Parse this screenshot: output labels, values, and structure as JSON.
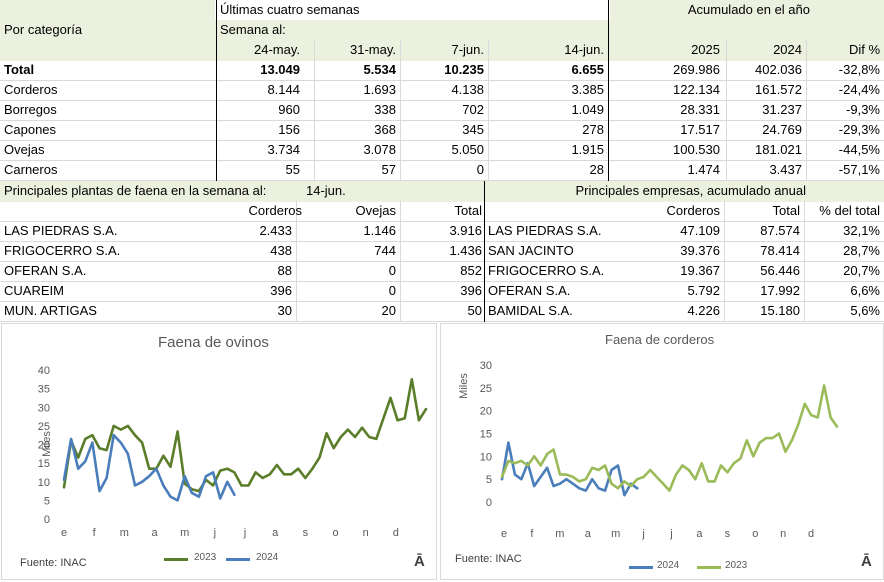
{
  "top": {
    "group_recent": "Últimas cuatro semanas",
    "group_ytd": "Acumulado en el año",
    "row_header": "Por categoría",
    "week_label": "Semana al:",
    "columns": [
      "24-may.",
      "31-may.",
      "7-jun.",
      "14-jun.",
      "2025",
      "2024",
      "Dif %"
    ],
    "rows": [
      {
        "label": "Total",
        "bold": true,
        "values": [
          "13.049",
          "5.534",
          "10.235",
          "6.655",
          "269.986",
          "402.036",
          "-32,8%"
        ]
      },
      {
        "label": "Corderos",
        "values": [
          "8.144",
          "1.693",
          "4.138",
          "3.385",
          "122.134",
          "161.572",
          "-24,4%"
        ]
      },
      {
        "label": "Borregos",
        "values": [
          "960",
          "338",
          "702",
          "1.049",
          "28.331",
          "31.237",
          "-9,3%"
        ]
      },
      {
        "label": "Capones",
        "values": [
          "156",
          "368",
          "345",
          "278",
          "17.517",
          "24.769",
          "-29,3%"
        ]
      },
      {
        "label": "Ovejas",
        "values": [
          "3.734",
          "3.078",
          "5.050",
          "1.915",
          "100.530",
          "181.021",
          "-44,5%"
        ]
      },
      {
        "label": "Carneros",
        "values": [
          "55",
          "57",
          "0",
          "28",
          "1.474",
          "3.437",
          "-57,1%"
        ]
      }
    ]
  },
  "plants": {
    "title": "Principales plantas de faena en la semana al:",
    "date": "14-jun.",
    "columns": [
      "Corderos",
      "Ovejas",
      "Total"
    ],
    "rows": [
      {
        "name": "LAS PIEDRAS S.A.",
        "values": [
          "2.433",
          "1.146",
          "3.916"
        ]
      },
      {
        "name": "FRIGOCERRO S.A.",
        "values": [
          "438",
          "744",
          "1.436"
        ]
      },
      {
        "name": "OFERAN S.A.",
        "values": [
          "88",
          "0",
          "852"
        ]
      },
      {
        "name": "CUAREIM",
        "values": [
          "396",
          "0",
          "396"
        ]
      },
      {
        "name": "MUN. ARTIGAS",
        "values": [
          "30",
          "20",
          "50"
        ]
      }
    ]
  },
  "companies": {
    "title": "Principales empresas, acumulado anual",
    "columns": [
      "Corderos",
      "Total",
      "% del total"
    ],
    "rows": [
      {
        "name": "LAS PIEDRAS S.A.",
        "values": [
          "47.109",
          "87.574",
          "32,1%"
        ]
      },
      {
        "name": "SAN JACINTO",
        "values": [
          "39.376",
          "78.414",
          "28,7%"
        ]
      },
      {
        "name": "FRIGOCERRO S.A.",
        "values": [
          "19.367",
          "56.446",
          "20,7%"
        ]
      },
      {
        "name": "OFERAN S.A.",
        "values": [
          "5.792",
          "17.992",
          "6,6%"
        ]
      },
      {
        "name": "BAMIDAL S.A.",
        "values": [
          "4.226",
          "15.180",
          "5,6%"
        ]
      }
    ]
  },
  "chart_data": [
    {
      "type": "line",
      "title": "Faena de ovinos",
      "ylabel": "Miles",
      "ylim": [
        0,
        40
      ],
      "yticks": [
        0,
        5,
        10,
        15,
        20,
        25,
        30,
        35,
        40
      ],
      "xticks": [
        "e",
        "f",
        "m",
        "a",
        "m",
        "j",
        "j",
        "a",
        "s",
        "o",
        "n",
        "d"
      ],
      "grid": false,
      "legend": "bottom",
      "source": "Fuente:  INAC",
      "logo": "Ā",
      "series": [
        {
          "name": "2023",
          "color": "#5a7d2a",
          "values": [
            8.5,
            21,
            16.5,
            21.5,
            22.5,
            19,
            18.5,
            25,
            24,
            25,
            22.5,
            20.5,
            13.5,
            13.5,
            17,
            14,
            23.5,
            9.5,
            8,
            7.5,
            10.5,
            9,
            13,
            13.5,
            12.5,
            9,
            9,
            12.5,
            11,
            12,
            14.5,
            12,
            12,
            13.5,
            11,
            13.5,
            16.5,
            23,
            19,
            22,
            24,
            22,
            24.5,
            22,
            21.5,
            27,
            32.5,
            26.5,
            27,
            37.5,
            26.5,
            29.5
          ]
        },
        {
          "name": "2024",
          "color": "#4a7ebb",
          "values": [
            10.5,
            21.5,
            13.5,
            15.5,
            20.5,
            7.5,
            11,
            22.5,
            20.5,
            17.5,
            9,
            10,
            11.5,
            13.5,
            9,
            6,
            5,
            11.5,
            7,
            6,
            11.5,
            12.5,
            5.5,
            10,
            6.5
          ]
        }
      ]
    },
    {
      "type": "line",
      "title": "Faena de corderos",
      "ylabel": "Miles",
      "ylim": [
        0,
        30
      ],
      "yticks": [
        0,
        5,
        10,
        15,
        20,
        25,
        30
      ],
      "xticks": [
        "e",
        "f",
        "m",
        "a",
        "m",
        "j",
        "j",
        "a",
        "s",
        "o",
        "n",
        "d"
      ],
      "grid": false,
      "legend": "bottom",
      "source": "Fuente:  INAC",
      "logo": "Ā",
      "series": [
        {
          "name": "2024",
          "color": "#4a7ebb",
          "values": [
            5,
            13,
            6,
            5,
            8.5,
            3.5,
            5.5,
            7.5,
            3.5,
            4,
            5,
            4,
            3,
            2.5,
            5,
            3,
            2.5,
            7,
            8,
            1.5,
            4,
            3
          ]
        },
        {
          "name": "2023",
          "color": "#9bbb59",
          "values": [
            5.5,
            9,
            8.5,
            9,
            8,
            10,
            8,
            10.5,
            11.5,
            6,
            6,
            5.5,
            4.5,
            5,
            7.5,
            7,
            8,
            4,
            3,
            4.5,
            3.5,
            5,
            5.5,
            7,
            5.5,
            4,
            2.5,
            6,
            8,
            7,
            5,
            8.5,
            4.5,
            4.5,
            8,
            6.5,
            8.5,
            9.5,
            13.5,
            10,
            13,
            14,
            14,
            15,
            11,
            13.5,
            17,
            21.5,
            19,
            18.5,
            25.5,
            18.5,
            16.5
          ]
        }
      ]
    }
  ]
}
